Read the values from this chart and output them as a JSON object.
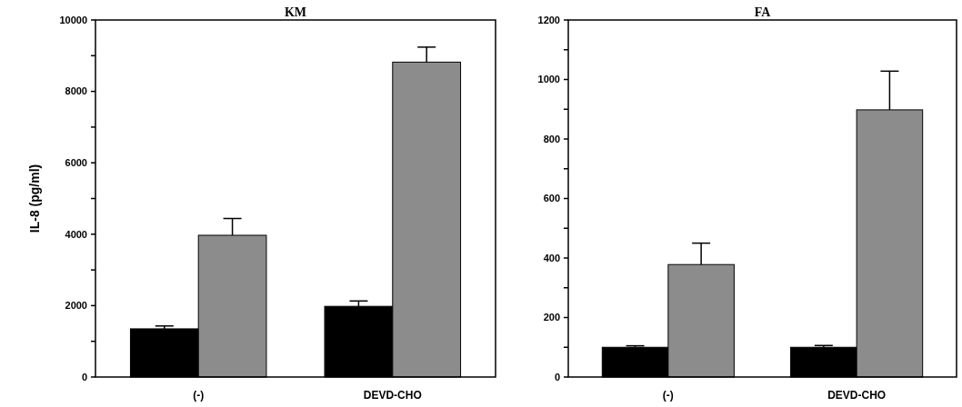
{
  "chart_data": [
    {
      "type": "bar",
      "title": "KM",
      "ylabel": "IL-8 (pg/ml)",
      "categories": [
        "(-)",
        "DEVD-CHO"
      ],
      "series": [
        {
          "color": "#000000",
          "values": [
            1350,
            1980
          ],
          "errors": [
            [
              1350,
              1430
            ],
            [
              1980,
              2130
            ]
          ]
        },
        {
          "color": "#8c8c8c",
          "values": [
            3970,
            8820
          ],
          "errors": [
            [
              3970,
              4440
            ],
            [
              8820,
              9240
            ]
          ]
        }
      ],
      "ylim": [
        0,
        10000
      ],
      "yticks": [
        0,
        {
          "value": 1000,
          "label": null
        },
        2000,
        {
          "value": 3000,
          "label": null
        },
        4000,
        {
          "value": 5000,
          "label": null
        },
        6000,
        {
          "value": 7000,
          "label": null
        },
        8000,
        {
          "value": 9000,
          "label": null
        },
        10000
      ]
    },
    {
      "type": "bar",
      "title": "FA",
      "categories": [
        "(-)",
        "DEVD-CHO"
      ],
      "series": [
        {
          "color": "#000000",
          "values": [
            100,
            100
          ],
          "errors": [
            [
              100,
              105
            ],
            [
              100,
              106
            ]
          ]
        },
        {
          "color": "#8c8c8c",
          "values": [
            378,
            898
          ],
          "errors": [
            [
              378,
              450
            ],
            [
              898,
              1028
            ]
          ]
        }
      ],
      "ylim": [
        0,
        1200
      ],
      "yticks": [
        0,
        {
          "value": 100,
          "label": null
        },
        200,
        {
          "value": 300,
          "label": null
        },
        400,
        {
          "value": 500,
          "label": null
        },
        600,
        {
          "value": 700,
          "label": null
        },
        800,
        {
          "value": 900,
          "label": null
        },
        1000,
        {
          "value": 1100,
          "label": null
        },
        1200
      ]
    }
  ]
}
